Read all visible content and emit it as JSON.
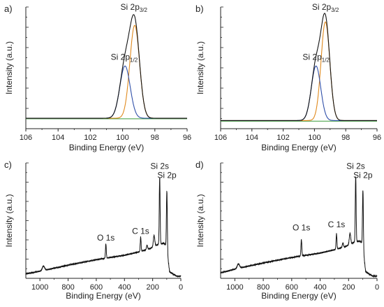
{
  "colors": {
    "axis": "#222222",
    "envelope": "#111111",
    "component_3_2": "#e08a1e",
    "component_1_2": "#2f4fa8",
    "background": "#3a9a3a"
  },
  "chart_data": [
    {
      "panel_label": "a)",
      "type": "line",
      "xlabel": "Binding Energy (eV)",
      "ylabel": "Intensity (a.u.)",
      "xlim": [
        106,
        96
      ],
      "x_reversed": true,
      "xticks": [
        106,
        104,
        102,
        100,
        98,
        96
      ],
      "ylim": [
        0,
        1
      ],
      "annotations": [
        {
          "base": "Si 2p",
          "sub": "3/2",
          "x": 99.3,
          "y": 1.0
        },
        {
          "base": "Si 2p",
          "sub": "1/2",
          "x": 99.9,
          "y": 0.57
        }
      ],
      "baseline": 0.09,
      "components": [
        {
          "label": "Si 2p3/2",
          "center": 99.25,
          "height": 0.8,
          "width": 0.3,
          "color": "#e08a1e"
        },
        {
          "label": "Si 2p1/2",
          "center": 99.85,
          "height": 0.45,
          "width": 0.32,
          "color": "#2f4fa8"
        }
      ]
    },
    {
      "panel_label": "b)",
      "type": "line",
      "xlabel": "Binding Energy (eV)",
      "ylabel": "Intensity (a.u.)",
      "xlim": [
        106,
        96
      ],
      "x_reversed": true,
      "xticks": [
        106,
        104,
        102,
        100,
        98,
        96
      ],
      "ylim": [
        0,
        1
      ],
      "annotations": [
        {
          "base": "Si 2p",
          "sub": "3/2",
          "x": 99.3,
          "y": 1.0
        },
        {
          "base": "Si 2p",
          "sub": "1/2",
          "x": 99.9,
          "y": 0.57
        }
      ],
      "baseline": 0.07,
      "components": [
        {
          "label": "Si 2p3/2",
          "center": 99.3,
          "height": 0.85,
          "width": 0.28,
          "color": "#e08a1e"
        },
        {
          "label": "Si 2p1/2",
          "center": 99.9,
          "height": 0.47,
          "width": 0.3,
          "color": "#2f4fa8"
        }
      ]
    },
    {
      "panel_label": "c)",
      "type": "line",
      "xlabel": "Binding Energy (eV)",
      "ylabel": "Intensity (a.u.)",
      "xlim": [
        1100,
        0
      ],
      "x_reversed": true,
      "xticks": [
        1000,
        800,
        600,
        400,
        200,
        0
      ],
      "ylim": [
        0,
        1
      ],
      "annotations": [
        {
          "base": "Si 2s",
          "sub": "",
          "x": 150,
          "y": 0.97
        },
        {
          "base": "Si 2p",
          "sub": "",
          "x": 99,
          "y": 0.89
        },
        {
          "base": "C 1s",
          "sub": "",
          "x": 285,
          "y": 0.38
        },
        {
          "base": "O 1s",
          "sub": "",
          "x": 532,
          "y": 0.32
        }
      ],
      "survey": {
        "start": [
          1100,
          0.04
        ],
        "background": [
          [
            1100,
            0.04
          ],
          [
            980,
            0.07
          ],
          [
            800,
            0.12
          ],
          [
            600,
            0.17
          ],
          [
            400,
            0.21
          ],
          [
            300,
            0.24
          ],
          [
            220,
            0.27
          ],
          [
            160,
            0.31
          ],
          [
            120,
            0.32
          ],
          [
            102,
            0.3
          ],
          [
            80,
            0.06
          ],
          [
            30,
            0.02
          ],
          [
            0,
            0.02
          ]
        ],
        "peaks": [
          {
            "center": 975,
            "height": 0.04,
            "width": 8
          },
          {
            "center": 532,
            "height": 0.13,
            "width": 3
          },
          {
            "center": 285,
            "height": 0.13,
            "width": 3
          },
          {
            "center": 240,
            "height": 0.04,
            "width": 4
          },
          {
            "center": 190,
            "height": 0.1,
            "width": 5
          },
          {
            "center": 150,
            "height": 0.61,
            "width": 3
          },
          {
            "center": 99,
            "height": 0.53,
            "width": 3
          }
        ]
      }
    },
    {
      "panel_label": "d)",
      "type": "line",
      "xlabel": "Binding Energy (eV)",
      "ylabel": "Intensity (a.u.)",
      "xlim": [
        1100,
        0
      ],
      "x_reversed": true,
      "xticks": [
        1000,
        800,
        600,
        400,
        200,
        0
      ],
      "ylim": [
        0,
        1
      ],
      "annotations": [
        {
          "base": "Si 2s",
          "sub": "",
          "x": 150,
          "y": 0.97
        },
        {
          "base": "Si 2p",
          "sub": "",
          "x": 99,
          "y": 0.89
        },
        {
          "base": "C 1s",
          "sub": "",
          "x": 285,
          "y": 0.44
        },
        {
          "base": "O 1s",
          "sub": "",
          "x": 532,
          "y": 0.41
        }
      ],
      "survey": {
        "start": [
          1100,
          0.05
        ],
        "background": [
          [
            1100,
            0.05
          ],
          [
            980,
            0.09
          ],
          [
            800,
            0.14
          ],
          [
            600,
            0.19
          ],
          [
            400,
            0.23
          ],
          [
            300,
            0.26
          ],
          [
            220,
            0.29
          ],
          [
            160,
            0.33
          ],
          [
            120,
            0.34
          ],
          [
            102,
            0.32
          ],
          [
            80,
            0.06
          ],
          [
            30,
            0.02
          ],
          [
            0,
            0.02
          ]
        ],
        "peaks": [
          {
            "center": 975,
            "height": 0.04,
            "width": 8
          },
          {
            "center": 532,
            "height": 0.15,
            "width": 3
          },
          {
            "center": 285,
            "height": 0.14,
            "width": 3
          },
          {
            "center": 240,
            "height": 0.04,
            "width": 4
          },
          {
            "center": 190,
            "height": 0.1,
            "width": 5
          },
          {
            "center": 150,
            "height": 0.6,
            "width": 3
          },
          {
            "center": 99,
            "height": 0.52,
            "width": 3
          }
        ]
      }
    }
  ]
}
